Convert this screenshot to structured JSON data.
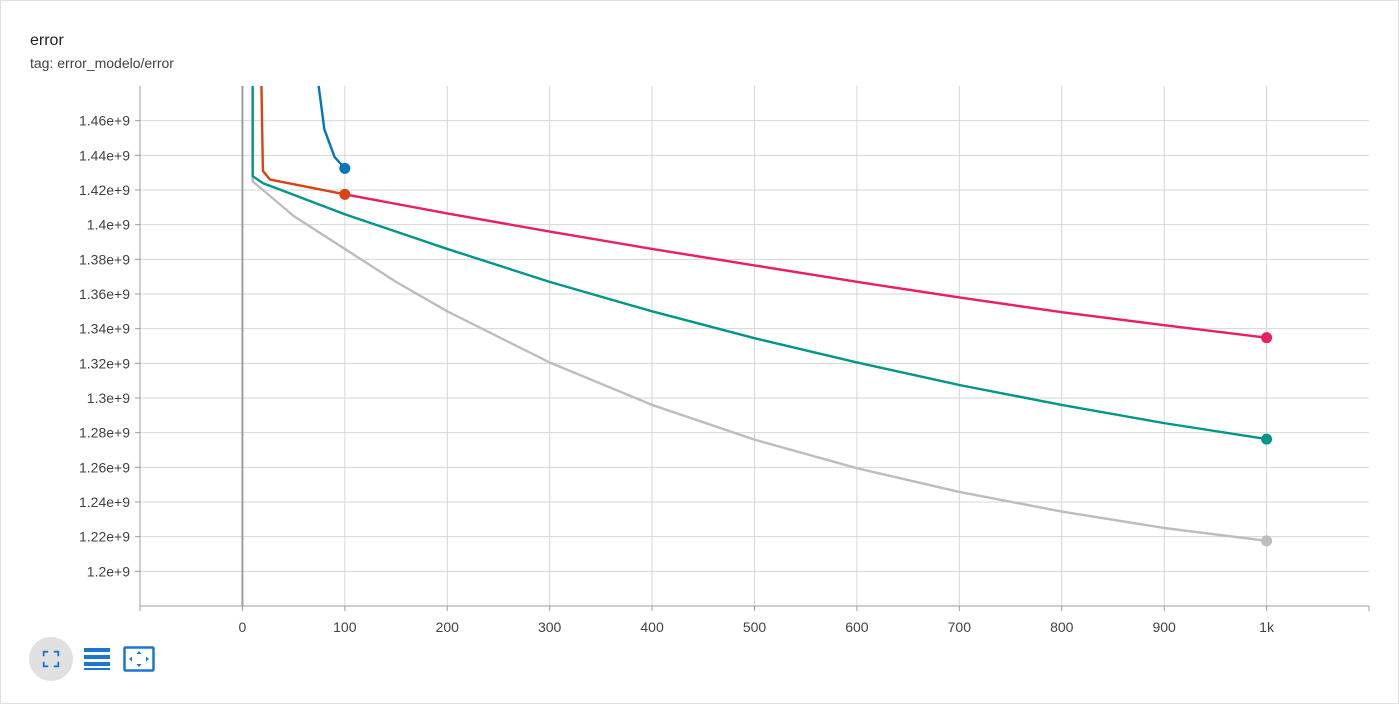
{
  "card": {
    "title": "error",
    "tag": "tag: error_modelo/error"
  },
  "toolbar": {
    "buttons": [
      {
        "icon": "fullscreen-icon",
        "active": true
      },
      {
        "icon": "data-table-icon",
        "active": false
      },
      {
        "icon": "fit-domain-icon",
        "active": false
      }
    ],
    "icon_color": "#1976d2"
  },
  "chart_data": {
    "type": "line",
    "title": "error",
    "xlabel": "",
    "ylabel": "",
    "xlim": [
      -100,
      1100
    ],
    "ylim": [
      1180000000,
      1480000000
    ],
    "grid": true,
    "x_ticks": [
      0,
      100,
      200,
      300,
      400,
      500,
      600,
      700,
      800,
      900,
      1000
    ],
    "x_tick_labels": [
      "0",
      "100",
      "200",
      "300",
      "400",
      "500",
      "600",
      "700",
      "800",
      "900",
      "1k"
    ],
    "y_ticks": [
      1200000000,
      1220000000,
      1240000000,
      1260000000,
      1280000000,
      1300000000,
      1320000000,
      1340000000,
      1360000000,
      1380000000,
      1400000000,
      1420000000,
      1440000000,
      1460000000
    ],
    "y_tick_labels": [
      "1.2e+9",
      "1.22e+9",
      "1.24e+9",
      "1.26e+9",
      "1.28e+9",
      "1.3e+9",
      "1.32e+9",
      "1.34e+9",
      "1.36e+9",
      "1.38e+9",
      "1.4e+9",
      "1.42e+9",
      "1.44e+9",
      "1.46e+9"
    ],
    "series": [
      {
        "color": "#bdbdbd",
        "points": [
          [
            10,
            1500000000
          ],
          [
            10,
            1425000000
          ],
          [
            50,
            1405000000
          ],
          [
            100,
            1386000000
          ],
          [
            150,
            1367000000
          ],
          [
            200,
            1350000000
          ],
          [
            300,
            1320500000
          ],
          [
            400,
            1296000000
          ],
          [
            500,
            1276000000
          ],
          [
            600,
            1259500000
          ],
          [
            700,
            1245800000
          ],
          [
            800,
            1234500000
          ],
          [
            900,
            1225000000
          ],
          [
            1000,
            1217600000
          ]
        ]
      },
      {
        "color": "#009688",
        "points": [
          [
            10,
            1500000000
          ],
          [
            10,
            1428000000
          ],
          [
            20,
            1424000000
          ],
          [
            100,
            1406000000
          ],
          [
            200,
            1386000000
          ],
          [
            300,
            1367000000
          ],
          [
            400,
            1350000000
          ],
          [
            500,
            1334500000
          ],
          [
            600,
            1320500000
          ],
          [
            700,
            1307500000
          ],
          [
            800,
            1296000000
          ],
          [
            900,
            1285500000
          ],
          [
            1000,
            1276300000
          ]
        ]
      },
      {
        "color": "#e91e63",
        "points": [
          [
            100,
            1417500000
          ],
          [
            200,
            1406500000
          ],
          [
            300,
            1396000000
          ],
          [
            400,
            1386000000
          ],
          [
            500,
            1376500000
          ],
          [
            600,
            1367000000
          ],
          [
            700,
            1358000000
          ],
          [
            800,
            1349500000
          ],
          [
            900,
            1342000000
          ],
          [
            1000,
            1334800000
          ]
        ]
      },
      {
        "color": "#d84315",
        "points": [
          [
            18,
            1500000000
          ],
          [
            20,
            1431000000
          ],
          [
            27,
            1426000000
          ],
          [
            100,
            1417500000
          ]
        ]
      },
      {
        "color": "#0077bb",
        "points": [
          [
            70,
            1500000000
          ],
          [
            80,
            1455000000
          ],
          [
            90,
            1439000000
          ],
          [
            100,
            1432500000
          ]
        ]
      }
    ]
  }
}
